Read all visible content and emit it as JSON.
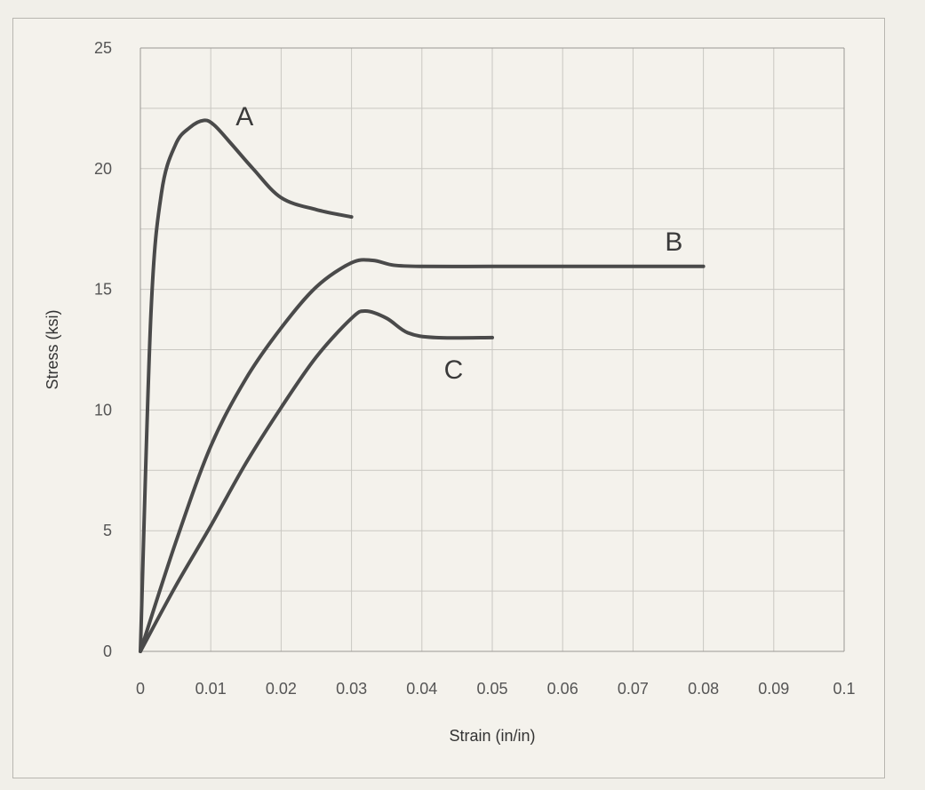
{
  "chart_data": {
    "type": "line",
    "title": "",
    "xlabel": "Strain (in/in)",
    "ylabel": "Stress (ksi)",
    "xlim": [
      0,
      0.1
    ],
    "ylim": [
      0,
      25
    ],
    "grid": true,
    "x_ticks": [
      0,
      0.01,
      0.02,
      0.03,
      0.04,
      0.05,
      0.06,
      0.07,
      0.08,
      0.09,
      0.1
    ],
    "x_tick_labels": [
      "0",
      "0.01",
      "0.02",
      "0.03",
      "0.04",
      "0.05",
      "0.06",
      "0.07",
      "0.08",
      "0.09",
      "0.1"
    ],
    "y_ticks": [
      0,
      5,
      10,
      15,
      20,
      25
    ],
    "y_tick_labels": [
      "0",
      "5",
      "10",
      "15",
      "20",
      "25"
    ],
    "series": [
      {
        "name": "A",
        "x": [
          0,
          0.0015,
          0.003,
          0.005,
          0.007,
          0.009,
          0.0105,
          0.013,
          0.016,
          0.02,
          0.025,
          0.03
        ],
        "y": [
          0,
          14,
          19,
          21,
          21.7,
          22,
          21.8,
          21,
          20,
          18.8,
          18.3,
          18
        ]
      },
      {
        "name": "B",
        "x": [
          0,
          0.005,
          0.01,
          0.015,
          0.02,
          0.025,
          0.03,
          0.033,
          0.036,
          0.04,
          0.05,
          0.06,
          0.07,
          0.08
        ],
        "y": [
          0,
          4.5,
          8.5,
          11.3,
          13.4,
          15.1,
          16.1,
          16.2,
          16,
          15.95,
          15.95,
          15.95,
          15.95,
          15.95
        ]
      },
      {
        "name": "C",
        "x": [
          0,
          0.005,
          0.01,
          0.015,
          0.02,
          0.025,
          0.03,
          0.032,
          0.035,
          0.038,
          0.042,
          0.05
        ],
        "y": [
          0,
          2.7,
          5.2,
          7.8,
          10.1,
          12.2,
          13.8,
          14.1,
          13.8,
          13.2,
          13,
          13
        ]
      }
    ]
  }
}
